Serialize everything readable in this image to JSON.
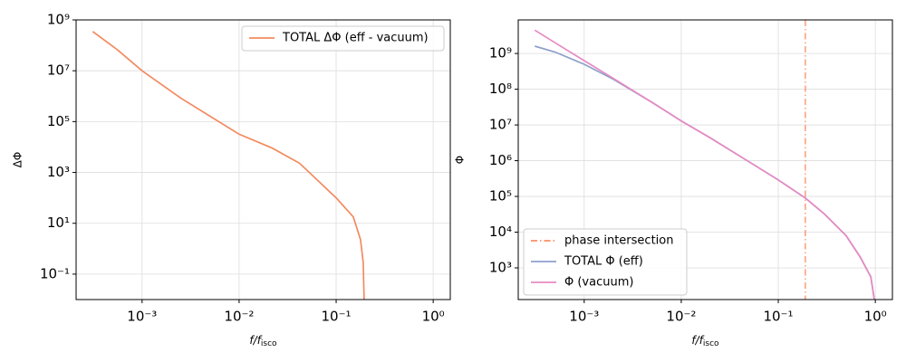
{
  "chart_data": [
    {
      "type": "line",
      "xlabel": "f/f",
      "xlabel_sub": "isco",
      "ylabel": "ΔΦ",
      "xscale": "log",
      "yscale": "log",
      "grid": true,
      "legend": "upper right",
      "xlim": [
        0.000209,
        1.5
      ],
      "ylim": [
        0.01,
        1000000000
      ],
      "xticks": [
        {
          "value": 0.001,
          "label": "10⁻³"
        },
        {
          "value": 0.01,
          "label": "10⁻²"
        },
        {
          "value": 0.1,
          "label": "10⁻¹"
        },
        {
          "value": 1,
          "label": "10⁰"
        }
      ],
      "yticks": [
        {
          "value": 0.1,
          "label": "10⁻¹"
        },
        {
          "value": 10,
          "label": "10¹"
        },
        {
          "value": 1000,
          "label": "10³"
        },
        {
          "value": 100000,
          "label": "10⁵"
        },
        {
          "value": 10000000,
          "label": "10⁷"
        },
        {
          "value": 1000000000,
          "label": "10⁹"
        }
      ],
      "x": [
        0.00031,
        0.00056,
        0.001,
        0.0025,
        0.01,
        0.022,
        0.042,
        0.1,
        0.15,
        0.178,
        0.19,
        0.195
      ],
      "series": [
        {
          "name": "TOTAL ΔΦ (eff - vacuum)",
          "color": "#f28b60",
          "values": [
            350000000,
            66000000,
            10000000,
            850000,
            32000,
            9000,
            2300,
            100,
            18,
            2.3,
            0.29,
            0.005
          ]
        }
      ]
    },
    {
      "type": "line",
      "xlabel": "f/f",
      "xlabel_sub": "isco",
      "ylabel": "Φ",
      "xscale": "log",
      "yscale": "log",
      "grid": true,
      "legend": "lower left",
      "xlim": [
        0.000209,
        1.5
      ],
      "ylim": [
        130,
        8700000000
      ],
      "xticks": [
        {
          "value": 0.001,
          "label": "10⁻³"
        },
        {
          "value": 0.01,
          "label": "10⁻²"
        },
        {
          "value": 0.1,
          "label": "10⁻¹"
        },
        {
          "value": 1,
          "label": "10⁰"
        }
      ],
      "yticks": [
        {
          "value": 1000,
          "label": "10³"
        },
        {
          "value": 10000,
          "label": "10⁴"
        },
        {
          "value": 100000,
          "label": "10⁵"
        },
        {
          "value": 1000000,
          "label": "10⁶"
        },
        {
          "value": 10000000,
          "label": "10⁷"
        },
        {
          "value": 100000000,
          "label": "10⁸"
        },
        {
          "value": 1000000000,
          "label": "10⁹"
        }
      ],
      "vlines": [
        {
          "name": "phase intersection",
          "color": "#fc8d62",
          "x": 0.19
        }
      ],
      "x": [
        0.00031,
        0.0005,
        0.001,
        0.002,
        0.005,
        0.01,
        0.02,
        0.05,
        0.1,
        0.19,
        0.3,
        0.5,
        0.7,
        0.9,
        0.98
      ],
      "series": [
        {
          "name": "TOTAL Φ (eff)",
          "color": "#8da0cb",
          "values": [
            1600000000,
            1100000000,
            500000000,
            190000000,
            43000000,
            13000000,
            4300000,
            930000,
            290000,
            90000,
            32000,
            8000,
            2000,
            560,
            120
          ]
        },
        {
          "name": "Φ (vacuum)",
          "color": "#e78ac3",
          "values": [
            4500000000,
            2000000000,
            630000000,
            200000000,
            43000000,
            13000000,
            4300000,
            930000,
            290000,
            90000,
            32000,
            8000,
            2000,
            560,
            120
          ]
        }
      ]
    }
  ]
}
